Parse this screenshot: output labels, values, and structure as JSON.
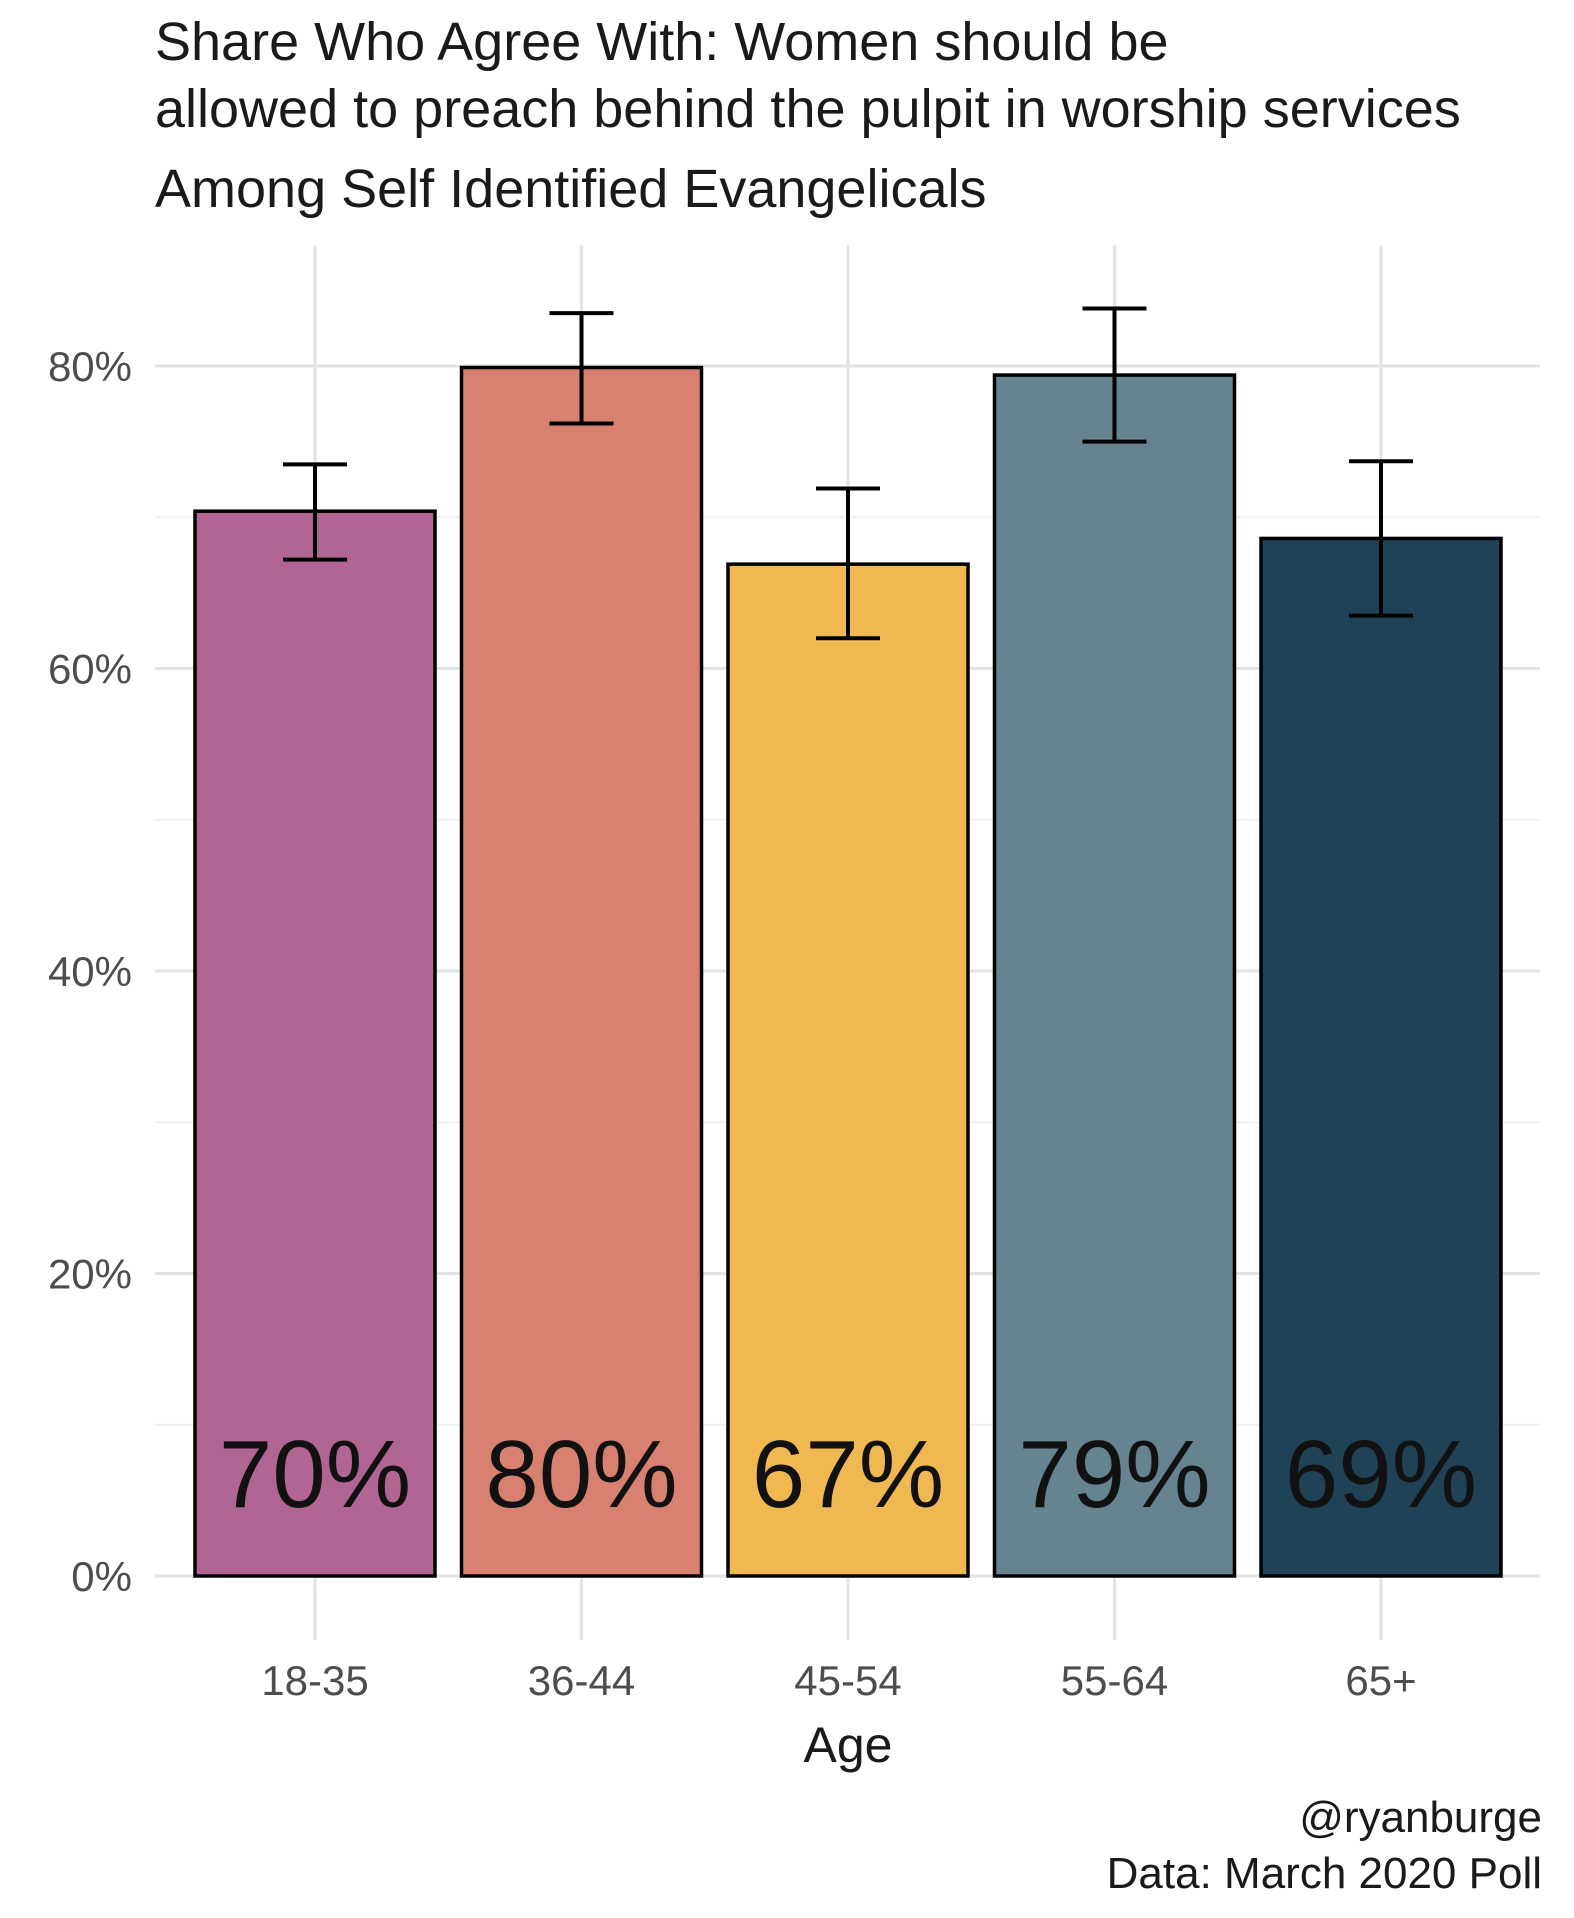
{
  "chart_data": {
    "type": "bar",
    "title": [
      "Share Who Agree With: Women should be",
      "allowed to preach behind the pulpit in worship services",
      "Among Self Identified Evangelicals"
    ],
    "xlabel": "Age",
    "ylabel": "",
    "categories": [
      "18-35",
      "36-44",
      "45-54",
      "55-64",
      "65+"
    ],
    "values": [
      70.4,
      79.9,
      66.9,
      79.4,
      68.6
    ],
    "error_low": [
      67.2,
      76.2,
      62.0,
      75.0,
      63.5
    ],
    "error_high": [
      73.5,
      83.5,
      71.9,
      83.8,
      73.7
    ],
    "data_labels": [
      "70%",
      "80%",
      "67%",
      "79%",
      "69%"
    ],
    "colors": [
      "#b06592",
      "#d98170",
      "#f0b851",
      "#658490",
      "#1f4256"
    ],
    "ylim": [
      0,
      85
    ],
    "yticks": [
      0,
      20,
      40,
      60,
      80
    ],
    "ytick_labels": [
      "0%",
      "20%",
      "40%",
      "60%",
      "80%"
    ],
    "grid": true,
    "caption": [
      "@ryanburge",
      "Data: March 2020 Poll"
    ]
  }
}
